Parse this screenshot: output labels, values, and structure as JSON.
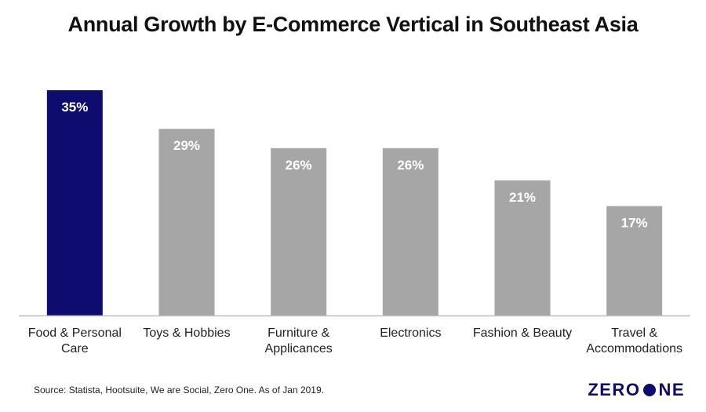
{
  "chart_data": {
    "type": "bar",
    "title": "Annual Growth by E-Commerce Vertical in Southeast Asia",
    "categories": [
      [
        "Food & Personal",
        "Care"
      ],
      [
        "Toys & Hobbies"
      ],
      [
        "Furniture &",
        "Applicances"
      ],
      [
        "Electronics"
      ],
      [
        "Fashion & Beauty"
      ],
      [
        "Travel &",
        "Accommodations"
      ]
    ],
    "values": [
      35,
      29,
      26,
      26,
      21,
      17
    ],
    "data_labels": [
      "35%",
      "29%",
      "26%",
      "26%",
      "21%",
      "17%"
    ],
    "unit": "%",
    "xlabel": "",
    "ylabel": "",
    "ylim": [
      0,
      35
    ],
    "grid": false,
    "colors": {
      "highlight": "#0e0c6e",
      "default": "#a6a6a6",
      "label_text": "#ffffff",
      "axis": "#bfbfbf",
      "category_text": "#222222"
    }
  },
  "footer": {
    "source": "Source: Statista, Hootsuite, We are Social, Zero One. As of Jan 2019.",
    "logo_left": "ZERO",
    "logo_right": "NE"
  }
}
